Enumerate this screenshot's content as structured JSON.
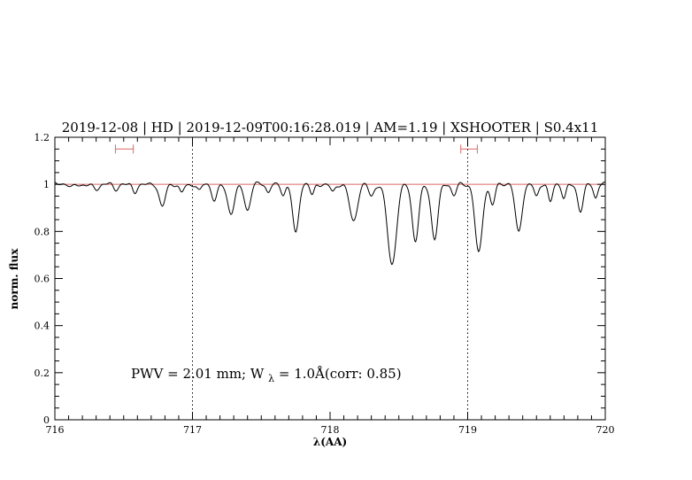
{
  "window": {
    "background": "#ffffff"
  },
  "chart_data": {
    "type": "line",
    "title": "2019-12-08 | HD | 2019-12-09T00:16:28.019 | AM=1.19 | XSHOOTER | S0.4x11",
    "title_color": "#0000cc",
    "xlabel": "λ(AA)",
    "ylabel": "norm. flux",
    "xlim": [
      716,
      720
    ],
    "ylim": [
      0,
      1.2
    ],
    "x_major_ticks": [
      716,
      717,
      718,
      719,
      720
    ],
    "x_tick_labels": [
      "716",
      "717",
      "718",
      "719",
      "720"
    ],
    "x_minor_step": 0.1,
    "y_major_ticks": [
      0,
      0.2,
      0.4,
      0.6,
      0.8,
      1.0,
      1.2
    ],
    "y_tick_labels": [
      "0",
      "0.2",
      "0.4",
      "0.6",
      "0.8",
      "1",
      "1.2"
    ],
    "y_minor_step": 0.05,
    "grid": "off",
    "legend": "none",
    "axis_color": "#000000",
    "dotted_guides_x": [
      717,
      719
    ],
    "continuum_line": {
      "y": 1.0,
      "color": "#dd6666"
    },
    "range_markers": {
      "color": "#dd6666",
      "y": 1.15,
      "items": [
        {
          "x_start": 716.44,
          "x_end": 716.57
        },
        {
          "x_start": 718.95,
          "x_end": 719.07
        }
      ]
    },
    "annotation": {
      "prefix": "PWV = 2.01 mm; W",
      "sub": "λ",
      "suffix": " = 1.0Å(corr: 0.85)",
      "color": "#0000cc",
      "x": 716.55,
      "y": 0.2
    },
    "series": [
      {
        "name": "normalized-spectrum",
        "color": "#000000",
        "continuum_level": 1.0,
        "sample_step": 0.006,
        "absorption_lines": [
          {
            "center": 716.12,
            "depth": 0.015,
            "sigma": 0.018
          },
          {
            "center": 716.3,
            "depth": 0.02,
            "sigma": 0.02
          },
          {
            "center": 716.44,
            "depth": 0.025,
            "sigma": 0.018
          },
          {
            "center": 716.58,
            "depth": 0.03,
            "sigma": 0.015
          },
          {
            "center": 716.78,
            "depth": 0.1,
            "sigma": 0.022
          },
          {
            "center": 716.92,
            "depth": 0.035,
            "sigma": 0.015
          },
          {
            "center": 717.05,
            "depth": 0.03,
            "sigma": 0.015
          },
          {
            "center": 717.16,
            "depth": 0.07,
            "sigma": 0.02
          },
          {
            "center": 717.28,
            "depth": 0.12,
            "sigma": 0.025
          },
          {
            "center": 717.4,
            "depth": 0.11,
            "sigma": 0.022
          },
          {
            "center": 717.55,
            "depth": 0.035,
            "sigma": 0.015
          },
          {
            "center": 717.66,
            "depth": 0.04,
            "sigma": 0.015
          },
          {
            "center": 717.75,
            "depth": 0.21,
            "sigma": 0.022
          },
          {
            "center": 717.87,
            "depth": 0.05,
            "sigma": 0.015
          },
          {
            "center": 718.02,
            "depth": 0.03,
            "sigma": 0.015
          },
          {
            "center": 718.17,
            "depth": 0.16,
            "sigma": 0.028
          },
          {
            "center": 718.3,
            "depth": 0.05,
            "sigma": 0.018
          },
          {
            "center": 718.45,
            "depth": 0.34,
            "sigma": 0.032
          },
          {
            "center": 718.62,
            "depth": 0.24,
            "sigma": 0.024
          },
          {
            "center": 718.76,
            "depth": 0.23,
            "sigma": 0.024
          },
          {
            "center": 718.9,
            "depth": 0.05,
            "sigma": 0.018
          },
          {
            "center": 719.08,
            "depth": 0.29,
            "sigma": 0.026
          },
          {
            "center": 719.18,
            "depth": 0.09,
            "sigma": 0.018
          },
          {
            "center": 719.37,
            "depth": 0.2,
            "sigma": 0.024
          },
          {
            "center": 719.5,
            "depth": 0.05,
            "sigma": 0.015
          },
          {
            "center": 719.6,
            "depth": 0.08,
            "sigma": 0.016
          },
          {
            "center": 719.7,
            "depth": 0.06,
            "sigma": 0.015
          },
          {
            "center": 719.82,
            "depth": 0.11,
            "sigma": 0.02
          },
          {
            "center": 719.93,
            "depth": 0.06,
            "sigma": 0.015
          }
        ]
      }
    ]
  }
}
